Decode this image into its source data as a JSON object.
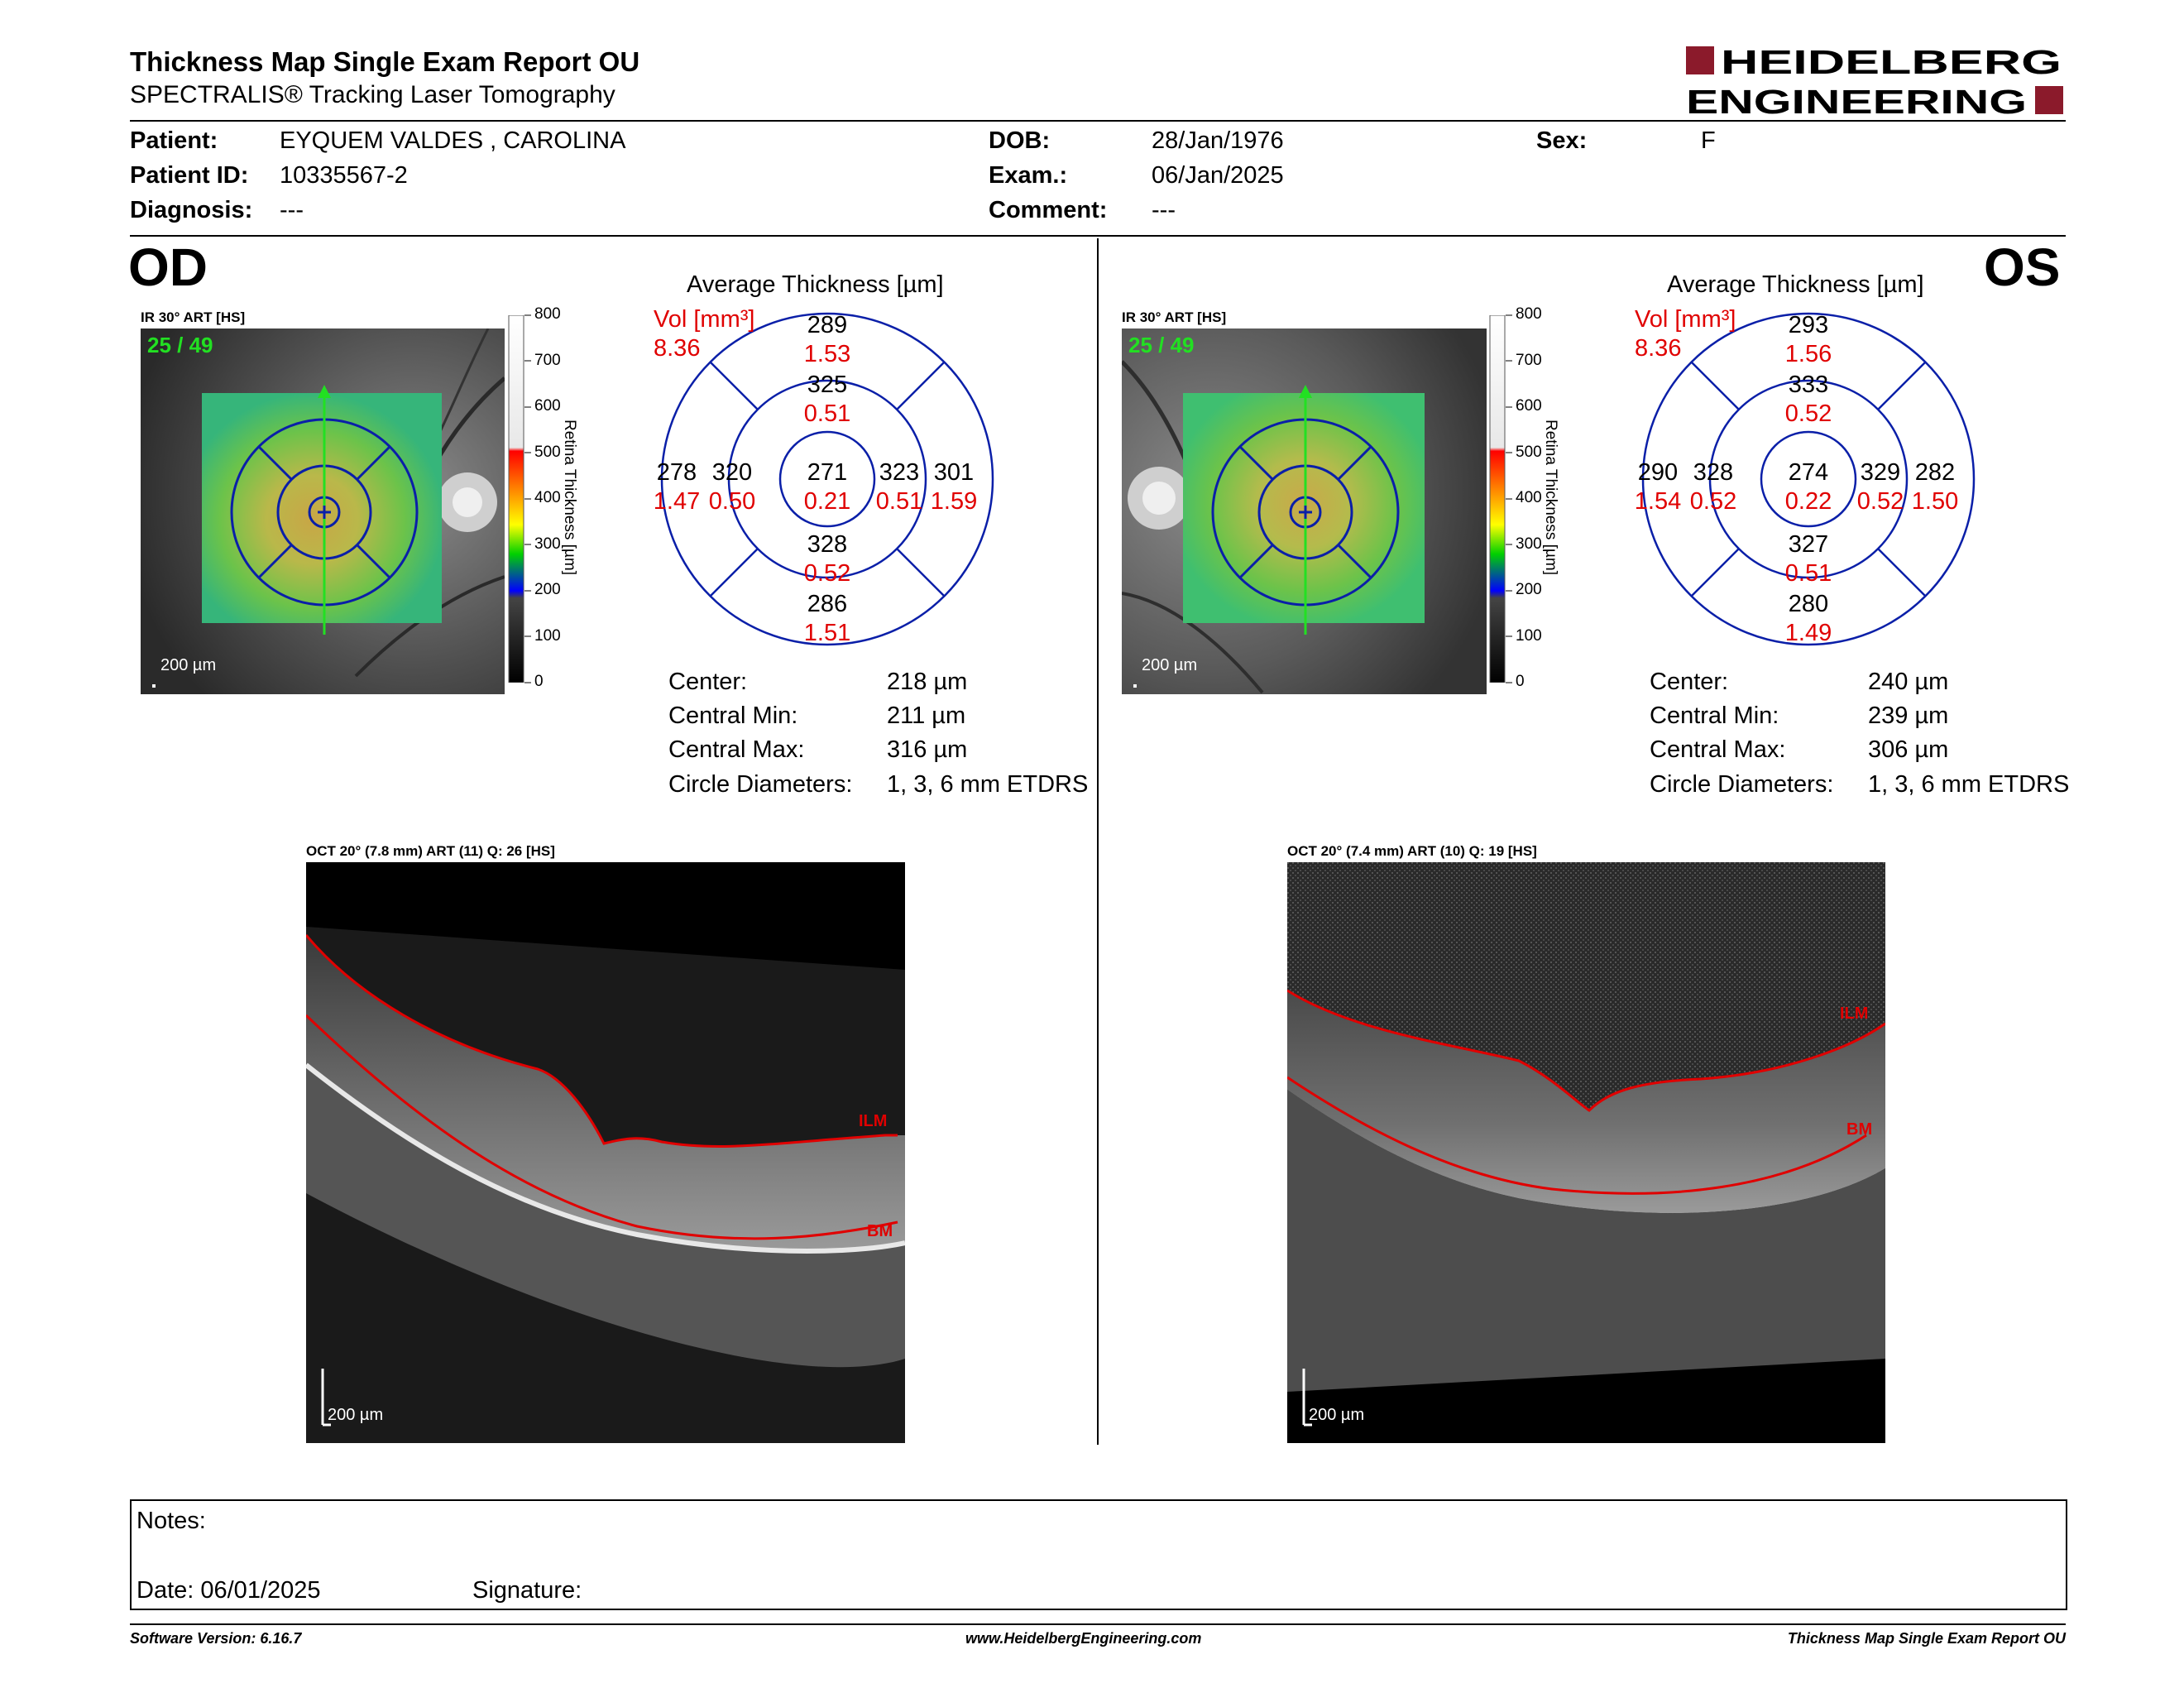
{
  "report": {
    "title": "Thickness Map Single Exam Report OU",
    "subtitle": "SPECTRALIS® Tracking Laser Tomography",
    "logo_line1": "HEIDELBERG",
    "logo_line2": "ENGINEERING"
  },
  "patient": {
    "patient_label": "Patient:",
    "patient_value": "EYQUEM VALDES , CAROLINA",
    "id_label": "Patient ID:",
    "id_value": "10335567-2",
    "diagnosis_label": "Diagnosis:",
    "diagnosis_value": "---",
    "dob_label": "DOB:",
    "dob_value": "28/Jan/1976",
    "exam_label": "Exam.:",
    "exam_value": "06/Jan/2025",
    "comment_label": "Comment:",
    "comment_value": "---",
    "sex_label": "Sex:",
    "sex_value": "F"
  },
  "od": {
    "eye": "OD",
    "ir_label": "IR 30° ART [HS]",
    "frame": "25 / 49",
    "scale": "200 µm",
    "colorbar_ticks": [
      "800",
      "700",
      "600",
      "500",
      "400",
      "300",
      "200",
      "100",
      "0"
    ],
    "colorbar_title": "Retina Thickness [µm]",
    "avg_title": "Average Thickness [µm]",
    "vol_label": "Vol [mm³]",
    "vol_value": "8.36",
    "sectors": {
      "center": {
        "t": "271",
        "v": "0.21"
      },
      "inner_sup": {
        "t": "325",
        "v": "0.51"
      },
      "inner_inf": {
        "t": "328",
        "v": "0.52"
      },
      "inner_left": {
        "t": "320",
        "v": "0.50"
      },
      "inner_right": {
        "t": "323",
        "v": "0.51"
      },
      "outer_sup": {
        "t": "289",
        "v": "1.53"
      },
      "outer_inf": {
        "t": "286",
        "v": "1.51"
      },
      "outer_left": {
        "t": "278",
        "v": "1.47"
      },
      "outer_right": {
        "t": "301",
        "v": "1.59"
      }
    },
    "stats": [
      {
        "label": "Center:",
        "value": "218 µm"
      },
      {
        "label": "Central Min:",
        "value": "211 µm"
      },
      {
        "label": "Central Max:",
        "value": "316 µm"
      },
      {
        "label": "Circle Diameters:",
        "value": "1, 3, 6 mm ETDRS"
      }
    ],
    "oct_label": "OCT 20° (7.8 mm) ART (11) Q: 26 [HS]",
    "ilm": "ILM",
    "bm": "BM",
    "oct_scale": "200 µm"
  },
  "os": {
    "eye": "OS",
    "ir_label": "IR 30° ART [HS]",
    "frame": "25 / 49",
    "scale": "200 µm",
    "colorbar_ticks": [
      "800",
      "700",
      "600",
      "500",
      "400",
      "300",
      "200",
      "100",
      "0"
    ],
    "colorbar_title": "Retina Thickness [µm]",
    "avg_title": "Average Thickness [µm]",
    "vol_label": "Vol [mm³]",
    "vol_value": "8.36",
    "sectors": {
      "center": {
        "t": "274",
        "v": "0.22"
      },
      "inner_sup": {
        "t": "333",
        "v": "0.52"
      },
      "inner_inf": {
        "t": "327",
        "v": "0.51"
      },
      "inner_left": {
        "t": "328",
        "v": "0.52"
      },
      "inner_right": {
        "t": "329",
        "v": "0.52"
      },
      "outer_sup": {
        "t": "293",
        "v": "1.56"
      },
      "outer_inf": {
        "t": "280",
        "v": "1.49"
      },
      "outer_left": {
        "t": "290",
        "v": "1.54"
      },
      "outer_right": {
        "t": "282",
        "v": "1.50"
      }
    },
    "stats": [
      {
        "label": "Center:",
        "value": "240 µm"
      },
      {
        "label": "Central Min:",
        "value": "239 µm"
      },
      {
        "label": "Central Max:",
        "value": "306 µm"
      },
      {
        "label": "Circle Diameters:",
        "value": "1, 3, 6 mm ETDRS"
      }
    ],
    "oct_label": "OCT 20° (7.4 mm) ART (10) Q: 19 [HS]",
    "ilm": "ILM",
    "bm": "BM",
    "oct_scale": "200 µm"
  },
  "notes": {
    "notes_label": "Notes:",
    "date_label": "Date: 06/01/2025",
    "signature_label": "Signature:"
  },
  "footer": {
    "software": "Software Version: 6.16.7",
    "website": "www.HeidelbergEngineering.com",
    "report_name": "Thickness Map Single Exam Report OU"
  },
  "colors": {
    "brand": "#8b1a2b",
    "etdrs_grid": "#0a1fa8",
    "volume_text": "#e00000"
  }
}
